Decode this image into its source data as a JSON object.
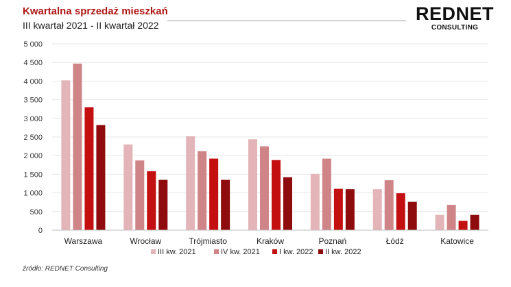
{
  "header": {
    "title": "Kwartalna sprzedaż mieszkań",
    "subtitle": "III kwartał 2021 - II kwartał 2022"
  },
  "logo": {
    "main": "REDNET",
    "sub": "CONSULTING"
  },
  "source": "źródło: REDNET Consulting",
  "chart_data": {
    "type": "bar",
    "categories": [
      "Warszawa",
      "Wrocław",
      "Trójmiasto",
      "Kraków",
      "Poznań",
      "Łódź",
      "Katowice"
    ],
    "series": [
      {
        "name": "III kw. 2021",
        "color": "#e3b5b8",
        "values": [
          4020,
          2300,
          2520,
          2440,
          1510,
          1100,
          410
        ]
      },
      {
        "name": "IV kw. 2021",
        "color": "#cf8587",
        "values": [
          4470,
          1870,
          2120,
          2250,
          1920,
          1340,
          680
        ]
      },
      {
        "name": "I kw. 2022",
        "color": "#c40f10",
        "values": [
          3300,
          1580,
          1920,
          1880,
          1110,
          990,
          250
        ]
      },
      {
        "name": "II kw. 2022",
        "color": "#8e0b0e",
        "values": [
          2820,
          1350,
          1350,
          1420,
          1100,
          760,
          410
        ]
      }
    ],
    "ylim": [
      0,
      5000
    ],
    "yticks": [
      0,
      500,
      1000,
      1500,
      2000,
      2500,
      3000,
      3500,
      4000,
      4500,
      5000
    ],
    "ytick_labels": [
      "0",
      "500",
      "1 000",
      "1 500",
      "2 000",
      "2 500",
      "3 000",
      "3 500",
      "4 000",
      "4 500",
      "5 000"
    ],
    "grid": true,
    "legend": "bottom"
  }
}
